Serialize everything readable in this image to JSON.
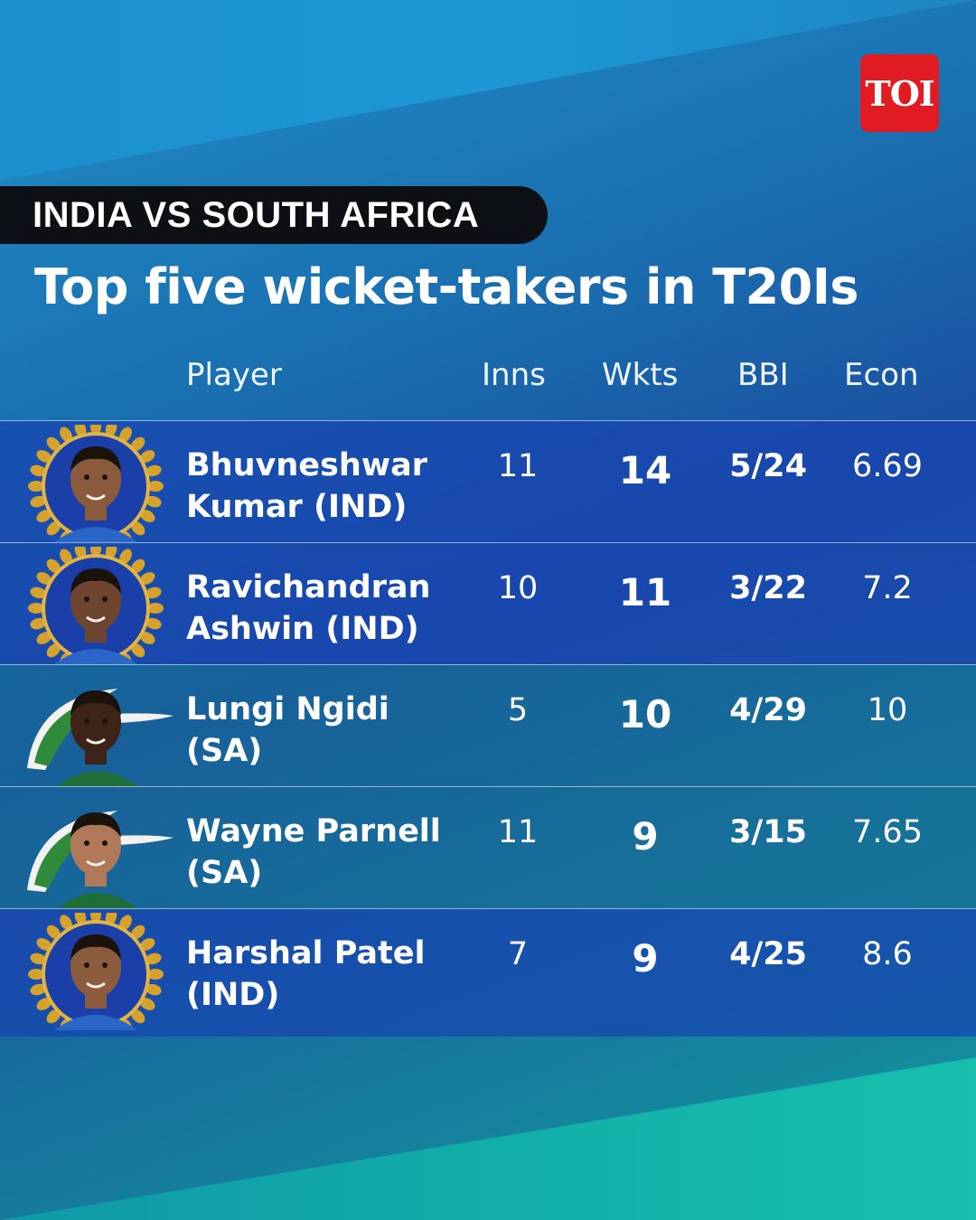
{
  "brand": {
    "logo_text": "TOI",
    "logo_color": "#e01b22"
  },
  "tag": "INDIA VS SOUTH AFRICA",
  "title": "Top five wicket-takers in T20Is",
  "columns": {
    "player": "Player",
    "inns": "Inns",
    "wkts": "Wkts",
    "bbi": "BBI",
    "econ": "Econ"
  },
  "players": [
    {
      "name1": "Bhuvneshwar",
      "name2": "Kumar (IND)",
      "team": "IND",
      "inns": "11",
      "wkts": "14",
      "bbi": "5/24",
      "econ": "6.69"
    },
    {
      "name1": "Ravichandran",
      "name2": "Ashwin (IND)",
      "team": "IND",
      "inns": "10",
      "wkts": "11",
      "bbi": "3/22",
      "econ": "7.2"
    },
    {
      "name1": "Lungi Ngidi",
      "name2": "(SA)",
      "team": "SA",
      "inns": "5",
      "wkts": "10",
      "bbi": "4/29",
      "econ": "10"
    },
    {
      "name1": "Wayne Parnell",
      "name2": "(SA)",
      "team": "SA",
      "inns": "11",
      "wkts": "9",
      "bbi": "3/15",
      "econ": "7.65"
    },
    {
      "name1": "Harshal Patel",
      "name2": "(IND)",
      "team": "IND",
      "inns": "7",
      "wkts": "9",
      "bbi": "4/25",
      "econ": "8.6"
    }
  ]
}
